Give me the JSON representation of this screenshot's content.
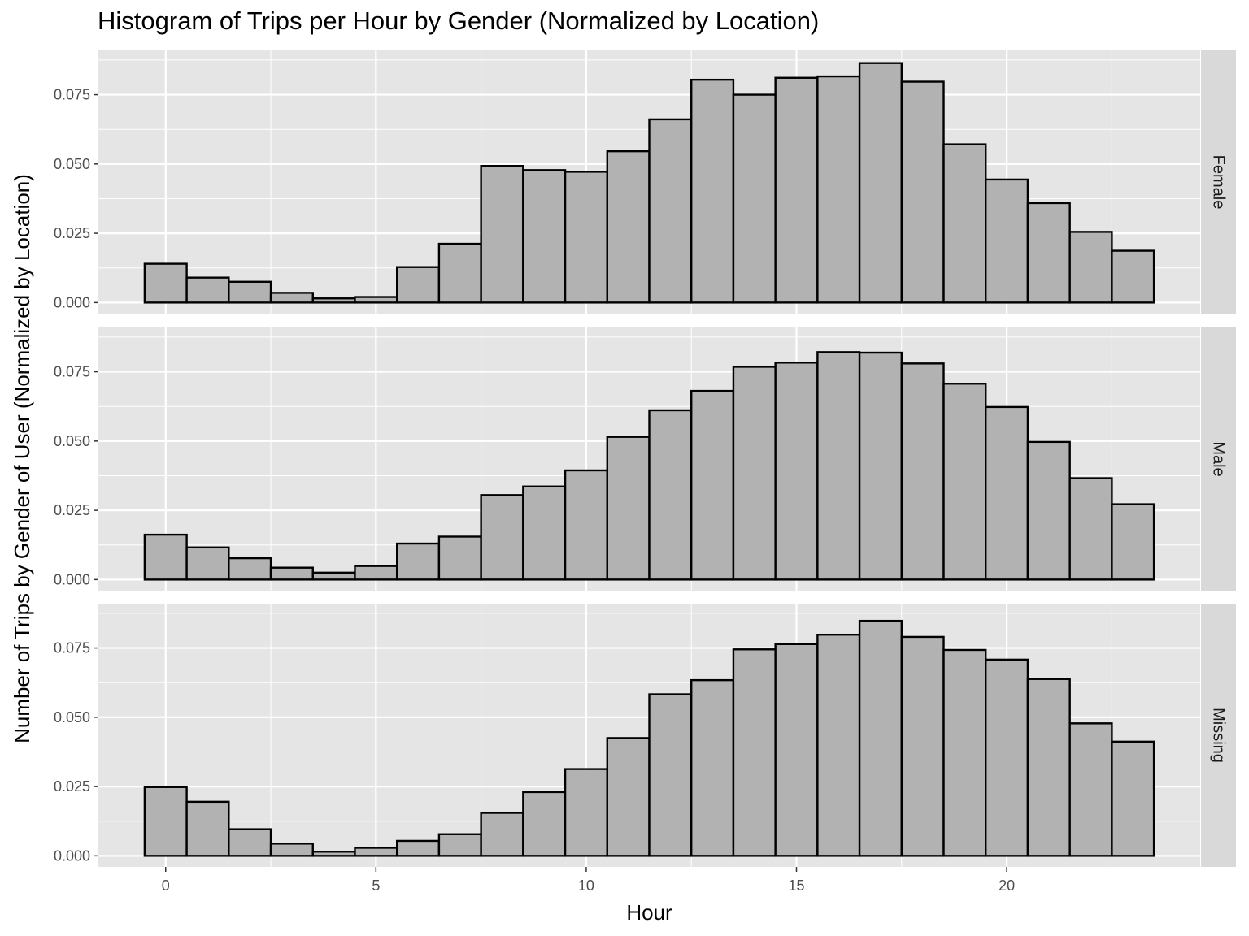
{
  "chart_data": {
    "type": "bar",
    "title": "Histogram of Trips per Hour by Gender (Normalized by Location)",
    "xlabel": "Hour",
    "ylabel": "Number of Trips by Gender of User (Normalized by Location)",
    "x": [
      0,
      1,
      2,
      3,
      4,
      5,
      6,
      7,
      8,
      9,
      10,
      11,
      12,
      13,
      14,
      15,
      16,
      17,
      18,
      19,
      20,
      21,
      22,
      23
    ],
    "xlim": [
      -1.6,
      24.6
    ],
    "xticks": [
      0,
      5,
      10,
      15,
      20
    ],
    "ylim": [
      -0.004,
      0.091
    ],
    "yticks": [
      0.0,
      0.025,
      0.05,
      0.075
    ],
    "ytick_labels": [
      "0.000",
      "0.025",
      "0.050",
      "0.075"
    ],
    "grid": true,
    "colors": {
      "bar_fill": "#b2b2b2",
      "bar_stroke": "#000000",
      "panel_bg": "#e5e5e5",
      "grid": "#ffffff",
      "strip_bg": "#d9d9d9"
    },
    "series": [
      {
        "name": "Female",
        "values": [
          0.014,
          0.009,
          0.0075,
          0.0035,
          0.0015,
          0.002,
          0.0128,
          0.0212,
          0.0493,
          0.0478,
          0.0472,
          0.0546,
          0.0661,
          0.0804,
          0.075,
          0.0811,
          0.0816,
          0.0864,
          0.0797,
          0.0571,
          0.0444,
          0.0359,
          0.0255,
          0.0187
        ]
      },
      {
        "name": "Male",
        "values": [
          0.0162,
          0.0116,
          0.0077,
          0.0043,
          0.0025,
          0.0049,
          0.013,
          0.0155,
          0.0305,
          0.0336,
          0.0394,
          0.0515,
          0.0611,
          0.0681,
          0.0768,
          0.0783,
          0.0821,
          0.0819,
          0.078,
          0.0707,
          0.0623,
          0.0497,
          0.0366,
          0.0272
        ]
      },
      {
        "name": "Missing",
        "values": [
          0.0248,
          0.0195,
          0.0096,
          0.0044,
          0.0015,
          0.0029,
          0.0054,
          0.0078,
          0.0155,
          0.023,
          0.0313,
          0.0425,
          0.0583,
          0.0634,
          0.0745,
          0.0764,
          0.0798,
          0.0848,
          0.079,
          0.0743,
          0.0708,
          0.0638,
          0.0478,
          0.0412
        ]
      }
    ]
  }
}
